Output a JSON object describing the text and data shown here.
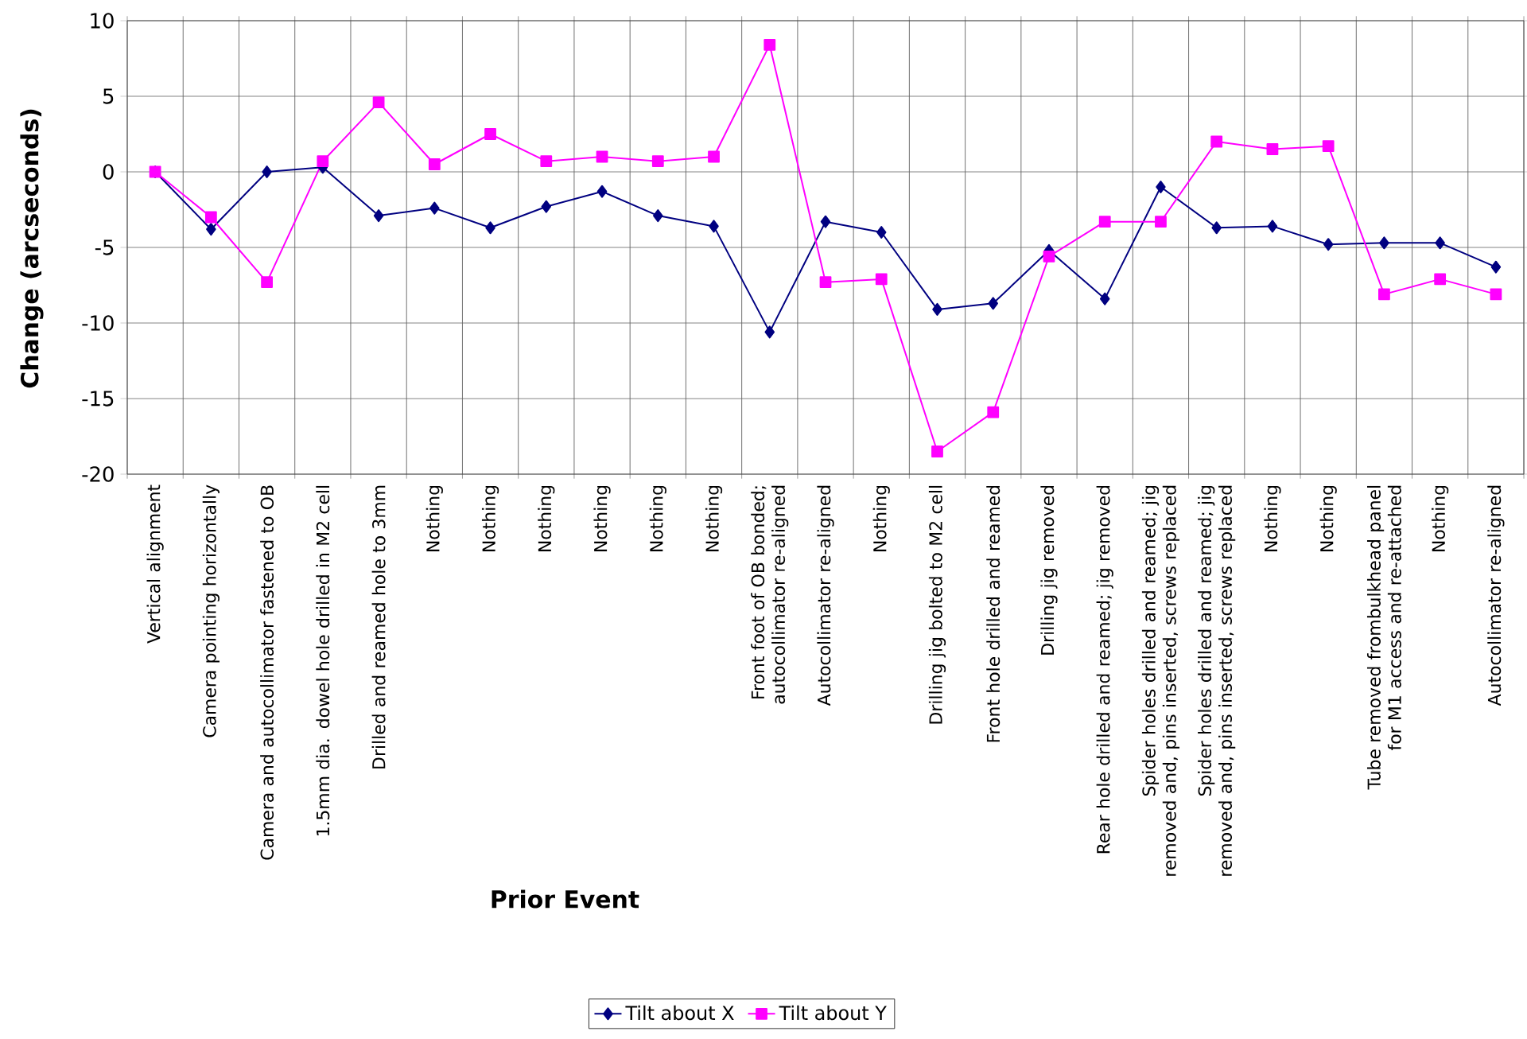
{
  "chart_data": {
    "type": "line",
    "xlabel": "Prior Event",
    "ylabel": "Change (arcseconds)",
    "categories": [
      "Vertical alignment",
      "Camera pointing horizontally",
      "Camera and autocollimator fastened to OB",
      "1.5mm dia. dowel hole drilled in M2 cell",
      "Drilled and reamed hole to 3mm",
      "Nothing",
      "Nothing",
      "Nothing",
      "Nothing",
      "Nothing",
      "Nothing",
      "Front foot of OB bonded; autocollimator re-aligned",
      "Autocollimator re-aligned",
      "Nothing",
      "Drilling jig bolted to M2 cell",
      "Front hole drilled and reamed",
      "Drilling jig removed",
      "Rear hole drilled and reamed; jig removed",
      "Spider holes drilled and reamed; jig removed and, pins inserted, screws replaced",
      "Spider holes drilled and reamed; jig removed and, pins inserted, screws replaced",
      "Nothing",
      "Nothing",
      "Tube removed frombulkhead panel for M1 access and re-attached",
      "Nothing",
      "Autocollimator re-aligned"
    ],
    "series": [
      {
        "name": "Tilt about X",
        "color": "#000080",
        "marker": "diamond",
        "values": [
          0,
          -3.8,
          0,
          0.3,
          -2.9,
          -2.4,
          -3.7,
          -2.3,
          -1.3,
          -2.9,
          -3.6,
          -10.6,
          -3.3,
          -4,
          -9.1,
          -8.7,
          -5.2,
          -8.4,
          -1,
          -3.7,
          -3.6,
          -4.8,
          -4.7,
          -4.7,
          -6.3
        ]
      },
      {
        "name": "Tilt about Y",
        "color": "#ff00ff",
        "marker": "square",
        "values": [
          0,
          -3,
          -7.3,
          0.7,
          4.6,
          0.5,
          2.5,
          0.7,
          1,
          0.7,
          1,
          8.4,
          -7.3,
          -7.1,
          -18.5,
          -15.9,
          -5.6,
          -3.3,
          -3.3,
          2,
          1.5,
          1.7,
          -8.1,
          -7.1,
          -8.1
        ]
      }
    ],
    "ylim": [
      -20,
      10
    ],
    "yticks": [
      -20,
      -15,
      -10,
      -5,
      0,
      5,
      10
    ],
    "grid": true,
    "legend": "bottom",
    "line_style": "solid"
  }
}
